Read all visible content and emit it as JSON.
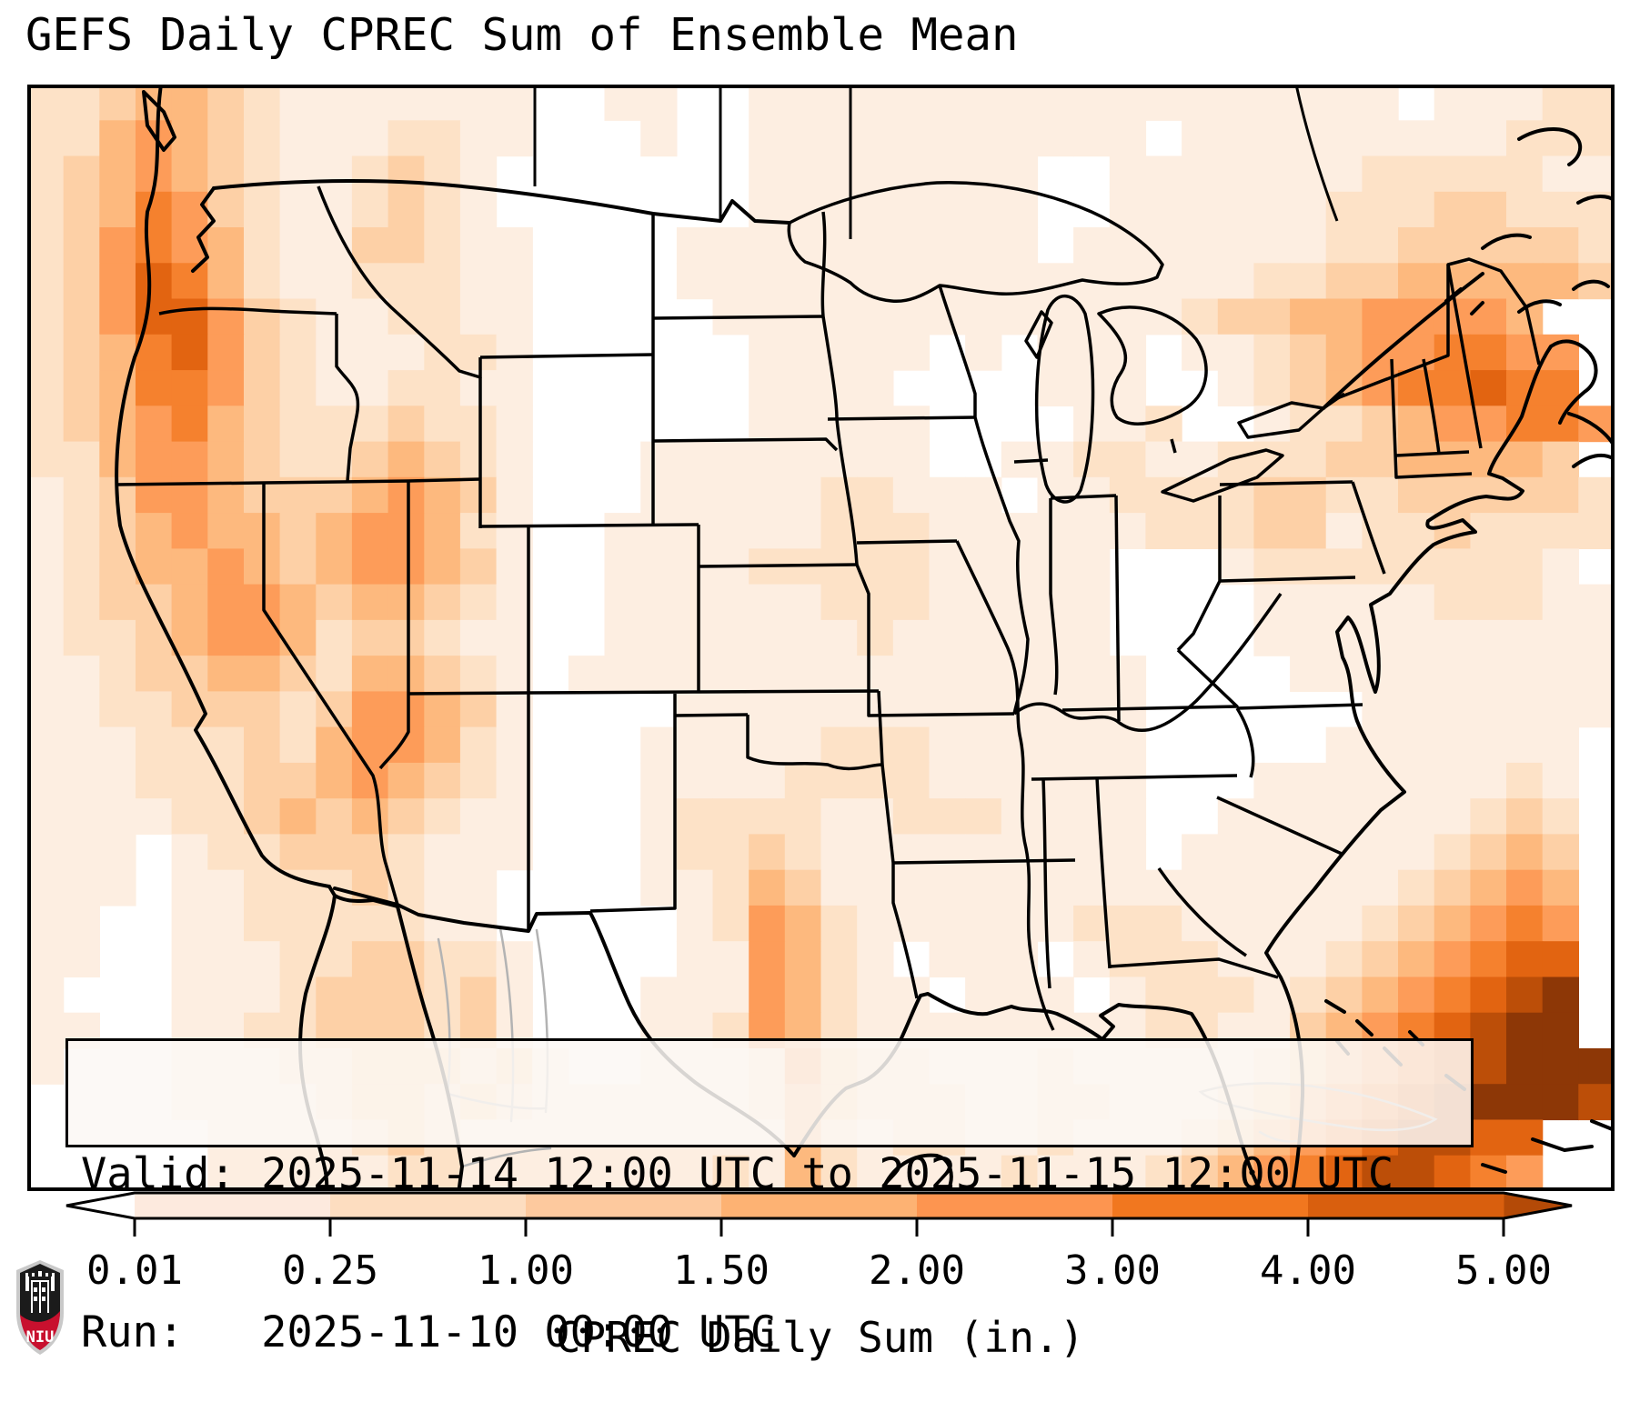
{
  "title": "GEFS Daily CPREC Sum of Ensemble Mean",
  "annotation": {
    "line1": "Valid: 2025-11-14 12:00 UTC to 2025-11-15 12:00 UTC",
    "line2": "Run:   2025-11-10 00:00 UTC"
  },
  "colorbar": {
    "label": "CPREC Daily Sum (in.)",
    "tick_labels": [
      "0.01",
      "0.25",
      "1.00",
      "1.50",
      "2.00",
      "3.00",
      "4.00",
      "5.00"
    ],
    "segment_colors": [
      "#fdeade",
      "#fdddc0",
      "#fdc99e",
      "#fdb273",
      "#fd9550",
      "#f1771f",
      "#d95f0e"
    ],
    "under_color": "#ffffff",
    "over_color": "#b44a07"
  },
  "logo": {
    "text": "NIU",
    "shield_dark": "#1b1b1b",
    "shield_red": "#c8102e",
    "shield_rim": "#c9c9c9"
  },
  "chart_data": {
    "type": "heatmap",
    "title": "GEFS Daily CPREC Sum of Ensemble Mean",
    "variable": "CPREC Daily Sum",
    "units": "in.",
    "levels": [
      0.01,
      0.25,
      1.0,
      1.5,
      2.0,
      3.0,
      4.0,
      5.0
    ],
    "valid": "2025-11-14 12:00 UTC to 2025-11-15 12:00 UTC",
    "run": "2025-11-10 00:00 UTC",
    "legend_position": "bottom",
    "palette": {
      "1": "#fdeee1",
      "2": "#fde2c7",
      "3": "#fdd0a6",
      "4": "#fdb97e",
      "5": "#fd9c59",
      "6": "#f5812e",
      "7": "#e26411",
      "8": "#bc4e08",
      "9": "#8d3706"
    },
    "grid_legend": "each character = one grid cell; '.'=<0.01in, 1=0.01-0.25, 2=0.25-1, 3=1-1.5, 4=1.5-2, 5=2-3, 6=3-4, 7=4-5, 8-9=>5 in",
    "grid_rows": [
      "22344321111111..11..111111111111111111.1112211",
      "2245432111221 1...1..11111111111.111111111222221",
      "234543211232 1.......1111111 1..11111112222211",
      "23465321123 21.......1111111 1..111111222332222",
      "2356542113321 1....1111111111 .111111122333332",
      "235764211222 11....1111111111 111111223344 4443",
      "23577532112211.....11111111111112334455554",
      "2346753211122 1......11111.1.111.11234556655",
      "2346653211221 1......1111....111..1234566766",
      "23456432223221......11111....112..1223455665",
      "224554322343 21...111111 11..112211222334 4443",
      "123554333454 31...1111122111.112222332233 3332",
      "12345443455421..11111122211111122233122 32222",
      "123445434554 31..11112222211111...122222 2221",
      "1233455434432 1..111111222111 11....111112 2211",
      "122345542332 11..11111112111111....111111 1111",
      "1123344324432 1.11111111111111 11....11111 1111",
      "11223332355431...  .1111111111111......1111 1111",
      "111222324554 21...111112221111 11.....111 1111",
      "111222334543 21...11112222111111...11111 1121",
      "111122343432 11...122221122211 11..111111 1232",
      "111.1223332111...122321111111 11.1111111 2343",
      "111.11222321 1....112431111111111111111 23454",
      "11..112222211....  .1254211111122211111234565",
      "11..111223322 1....1154 21.111.122211123 45677",
      "1...111233323 1...111542 11.111.12221234 56789",
      "11..112233323 1...112542111111112211345 67899",
      "1...11122333231..11125322111211111234567 8999",
      "....111123323211111124322211221112345678 9998",
      ".....11112321111111114212211211123456788 77..",
      ".....1111122111111121421111211123456788 765.."
    ]
  }
}
